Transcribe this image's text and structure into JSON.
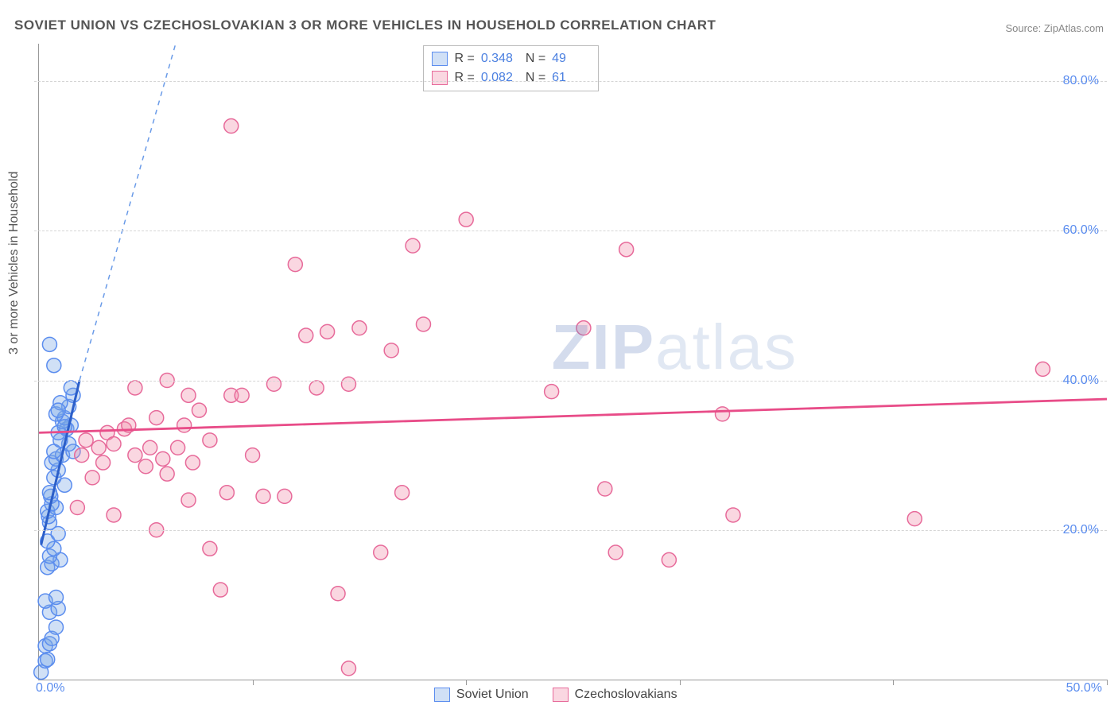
{
  "title": "SOVIET UNION VS CZECHOSLOVAKIAN 3 OR MORE VEHICLES IN HOUSEHOLD CORRELATION CHART",
  "source": "Source: ZipAtlas.com",
  "ylabel": "3 or more Vehicles in Household",
  "watermark": {
    "prefix": "ZIP",
    "suffix": "atlas"
  },
  "chart": {
    "type": "scatter",
    "xlim": [
      0,
      50
    ],
    "ylim": [
      0,
      85
    ],
    "x_ticks": [
      0,
      10,
      20,
      30,
      40,
      50
    ],
    "y_ticks": [
      20,
      40,
      60,
      80
    ],
    "x_tick_labels": [
      "0.0%",
      "",
      "",
      "",
      "",
      "50.0%"
    ],
    "y_tick_labels": [
      "20.0%",
      "40.0%",
      "60.0%",
      "80.0%"
    ],
    "grid_color": "#d5d5d5",
    "axis_color": "#999999",
    "background": "#ffffff",
    "marker_radius": 9,
    "marker_stroke_width": 1.5,
    "series": [
      {
        "name": "Soviet Union",
        "fill": "rgba(120,165,230,0.35)",
        "stroke": "#5b8def",
        "trend": {
          "x1": 0.1,
          "y1": 18,
          "x2": 1.9,
          "y2": 40,
          "solid_color": "#2c5fc9",
          "width": 3
        },
        "trend_ext": {
          "x1": 1.9,
          "y1": 40,
          "x2": 6.4,
          "y2": 85,
          "dash_color": "#6a9be8"
        },
        "points": [
          [
            0.1,
            1.0
          ],
          [
            0.3,
            2.5
          ],
          [
            0.4,
            2.7
          ],
          [
            0.3,
            4.5
          ],
          [
            0.5,
            4.8
          ],
          [
            0.6,
            5.5
          ],
          [
            0.8,
            7.0
          ],
          [
            0.5,
            9.0
          ],
          [
            0.9,
            9.5
          ],
          [
            0.3,
            10.5
          ],
          [
            0.8,
            11.0
          ],
          [
            0.4,
            15.0
          ],
          [
            0.6,
            15.5
          ],
          [
            1.0,
            16.0
          ],
          [
            0.5,
            16.5
          ],
          [
            0.7,
            17.5
          ],
          [
            0.4,
            18.5
          ],
          [
            0.9,
            19.5
          ],
          [
            0.5,
            21.0
          ],
          [
            0.45,
            21.8
          ],
          [
            0.4,
            22.5
          ],
          [
            0.8,
            23.0
          ],
          [
            0.6,
            23.5
          ],
          [
            0.55,
            24.5
          ],
          [
            0.5,
            25.0
          ],
          [
            1.2,
            26.0
          ],
          [
            0.7,
            27.0
          ],
          [
            0.9,
            28.0
          ],
          [
            0.6,
            29.0
          ],
          [
            0.8,
            29.5
          ],
          [
            1.1,
            30.0
          ],
          [
            0.7,
            30.5
          ],
          [
            1.6,
            30.5
          ],
          [
            1.4,
            31.5
          ],
          [
            1.0,
            32.0
          ],
          [
            0.9,
            33.0
          ],
          [
            1.3,
            33.5
          ],
          [
            1.5,
            34.0
          ],
          [
            1.1,
            34.5
          ],
          [
            1.2,
            35.0
          ],
          [
            0.8,
            35.5
          ],
          [
            1.4,
            36.5
          ],
          [
            1.0,
            37.0
          ],
          [
            1.6,
            38.0
          ],
          [
            0.7,
            42.0
          ],
          [
            0.5,
            44.8
          ],
          [
            1.2,
            33.8
          ],
          [
            0.9,
            36.0
          ],
          [
            1.5,
            39.0
          ]
        ]
      },
      {
        "name": "Czechoslovakians",
        "fill": "rgba(240,140,170,0.35)",
        "stroke": "#e76a9a",
        "trend": {
          "x1": 0,
          "y1": 33,
          "x2": 50,
          "y2": 37.5,
          "solid_color": "#e84c88",
          "width": 2.8
        },
        "points": [
          [
            1.8,
            23.0
          ],
          [
            2.0,
            30.0
          ],
          [
            2.2,
            32.0
          ],
          [
            2.5,
            27.0
          ],
          [
            2.8,
            31.0
          ],
          [
            3.0,
            29.0
          ],
          [
            3.2,
            33.0
          ],
          [
            3.5,
            22.0
          ],
          [
            3.5,
            31.5
          ],
          [
            4.0,
            33.5
          ],
          [
            4.2,
            34.0
          ],
          [
            4.5,
            30.0
          ],
          [
            4.5,
            39.0
          ],
          [
            5.0,
            28.5
          ],
          [
            5.2,
            31.0
          ],
          [
            5.5,
            35.0
          ],
          [
            5.8,
            29.5
          ],
          [
            6.0,
            27.5
          ],
          [
            6.0,
            40.0
          ],
          [
            6.5,
            31.0
          ],
          [
            6.8,
            34.0
          ],
          [
            7.0,
            24.0
          ],
          [
            7.0,
            38.0
          ],
          [
            7.2,
            29.0
          ],
          [
            7.5,
            36.0
          ],
          [
            8.0,
            32.0
          ],
          [
            8.0,
            17.5
          ],
          [
            8.5,
            12.0
          ],
          [
            8.8,
            25.0
          ],
          [
            9.0,
            38.0
          ],
          [
            9.0,
            74.0
          ],
          [
            9.5,
            38.0
          ],
          [
            10.0,
            30.0
          ],
          [
            10.5,
            24.5
          ],
          [
            11.0,
            39.5
          ],
          [
            11.5,
            24.5
          ],
          [
            12.0,
            55.5
          ],
          [
            12.5,
            46.0
          ],
          [
            13.0,
            39.0
          ],
          [
            13.5,
            46.5
          ],
          [
            14.0,
            11.5
          ],
          [
            14.5,
            1.5
          ],
          [
            14.5,
            39.5
          ],
          [
            15.0,
            47.0
          ],
          [
            16.0,
            17.0
          ],
          [
            16.5,
            44.0
          ],
          [
            17.0,
            25.0
          ],
          [
            17.5,
            58.0
          ],
          [
            18.0,
            47.5
          ],
          [
            20.0,
            61.5
          ],
          [
            24.0,
            38.5
          ],
          [
            25.5,
            47.0
          ],
          [
            26.5,
            25.5
          ],
          [
            27.0,
            17.0
          ],
          [
            27.5,
            57.5
          ],
          [
            29.5,
            16.0
          ],
          [
            32.0,
            35.5
          ],
          [
            32.5,
            22.0
          ],
          [
            41.0,
            21.5
          ],
          [
            47.0,
            41.5
          ],
          [
            5.5,
            20.0
          ]
        ]
      }
    ],
    "stats_box": {
      "rows": [
        {
          "swatch_fill": "rgba(120,165,230,0.35)",
          "swatch_stroke": "#5b8def",
          "r": "0.348",
          "n": "49"
        },
        {
          "swatch_fill": "rgba(240,140,170,0.35)",
          "swatch_stroke": "#e76a9a",
          "r": "0.082",
          "n": "61"
        }
      ]
    },
    "legend": [
      {
        "swatch_fill": "rgba(120,165,230,0.35)",
        "swatch_stroke": "#5b8def",
        "label": "Soviet Union"
      },
      {
        "swatch_fill": "rgba(240,140,170,0.35)",
        "swatch_stroke": "#e76a9a",
        "label": "Czechoslovakians"
      }
    ]
  }
}
